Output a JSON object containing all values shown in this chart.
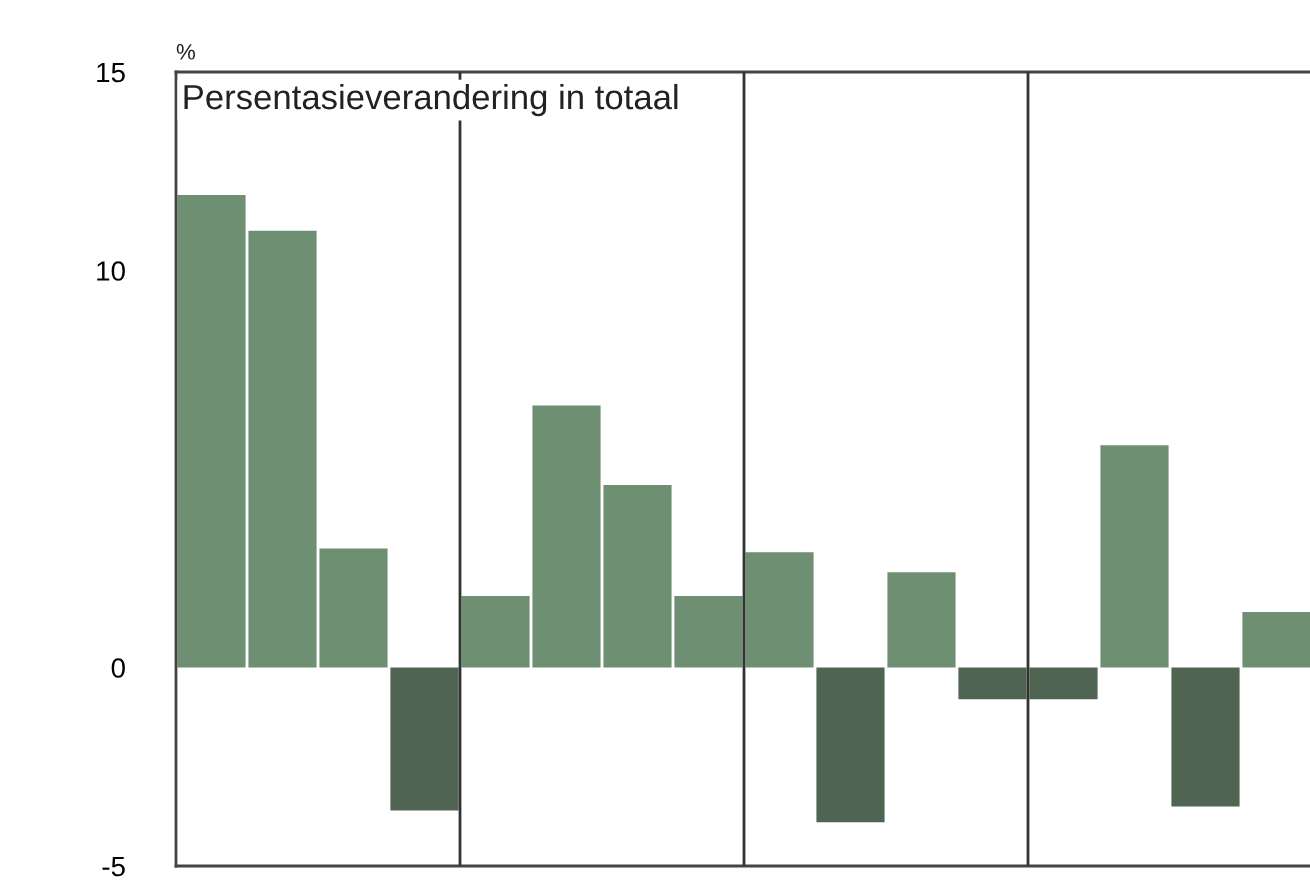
{
  "chart_data": {
    "type": "bar",
    "title": "Persentasieverandering in totaal",
    "ylabel": "%",
    "categories": [
      null,
      null,
      null,
      null,
      null,
      null,
      null,
      null,
      null,
      null,
      null,
      null,
      null,
      null,
      null,
      null
    ],
    "values": [
      11.9,
      11.0,
      3.0,
      -3.6,
      1.8,
      6.6,
      4.6,
      1.8,
      2.9,
      -3.9,
      2.4,
      -0.8,
      -0.8,
      5.6,
      -3.5,
      1.4
    ],
    "colors": [
      "#6f8f72",
      "#6f8f72",
      "#6f8f72",
      "#4f6552",
      "#6f8f72",
      "#6f8f72",
      "#6f8f72",
      "#6f8f72",
      "#6f8f72",
      "#4f6552",
      "#6f8f72",
      "#4f6552",
      "#4f6552",
      "#6f8f72",
      "#4f6552",
      "#6f8f72"
    ],
    "ylim": [
      -5,
      15
    ],
    "yticks": [
      -5,
      0,
      10,
      15
    ]
  }
}
